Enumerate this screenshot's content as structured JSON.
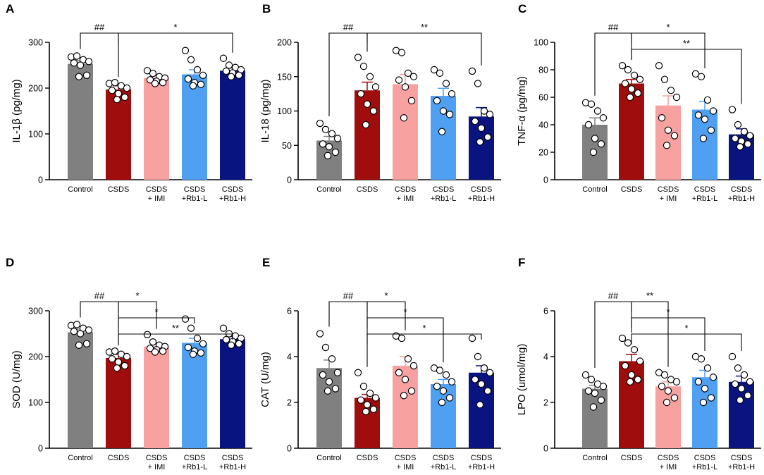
{
  "chart_data": [
    {
      "panel": "A",
      "type": "bar",
      "ylabel": "IL-1β (pg/mg)",
      "ylim": [
        0,
        300
      ],
      "yticks": [
        0,
        100,
        200,
        300
      ],
      "categories": [
        [
          "Control"
        ],
        [
          "CSDS"
        ],
        [
          "CSDS",
          "+ IMI"
        ],
        [
          "CSDS",
          "+Rb1-L"
        ],
        [
          "CSDS",
          "+Rb1-H"
        ]
      ],
      "colors": [
        "#808080",
        "#a00d0d",
        "#f7a1a1",
        "#4f9ff2",
        "#0a1480"
      ],
      "means": [
        253,
        197,
        222,
        230,
        238
      ],
      "sem": [
        7,
        8,
        8,
        10,
        6
      ],
      "points": [
        [
          268,
          270,
          262,
          258,
          255,
          250,
          228,
          225
        ],
        [
          210,
          212,
          205,
          200,
          195,
          188,
          180,
          175
        ],
        [
          238,
          232,
          225,
          222,
          218,
          215,
          212,
          210
        ],
        [
          282,
          262,
          240,
          228,
          220,
          212,
          208,
          205
        ],
        [
          265,
          250,
          245,
          240,
          237,
          233,
          228,
          225
        ]
      ],
      "brackets": [
        {
          "from": 0,
          "to": 1,
          "label": "##",
          "level": 0
        },
        {
          "from": 1,
          "to": 4,
          "label": "*",
          "level": 0
        }
      ]
    },
    {
      "panel": "B",
      "type": "bar",
      "ylabel": "IL-18 (pg/mg)",
      "ylim": [
        0,
        200
      ],
      "yticks": [
        0,
        50,
        100,
        150,
        200
      ],
      "categories": [
        [
          "Control"
        ],
        [
          "CSDS"
        ],
        [
          "CSDS",
          "+ IMI"
        ],
        [
          "CSDS",
          "+Rb1-L"
        ],
        [
          "CSDS",
          "+Rb1-H"
        ]
      ],
      "colors": [
        "#808080",
        "#a00d0d",
        "#f7a1a1",
        "#4f9ff2",
        "#0a1480"
      ],
      "means": [
        57,
        130,
        139,
        122,
        92
      ],
      "sem": [
        6,
        12,
        14,
        11,
        13
      ],
      "points": [
        [
          82,
          73,
          67,
          60,
          52,
          48,
          40,
          35
        ],
        [
          178,
          165,
          150,
          135,
          125,
          110,
          100,
          80
        ],
        [
          188,
          185,
          155,
          150,
          145,
          135,
          115,
          90
        ],
        [
          160,
          155,
          140,
          125,
          115,
          100,
          95,
          70
        ],
        [
          158,
          140,
          100,
          95,
          85,
          75,
          62,
          55
        ]
      ],
      "brackets": [
        {
          "from": 0,
          "to": 1,
          "label": "##",
          "level": 0
        },
        {
          "from": 1,
          "to": 4,
          "label": "**",
          "level": 0
        }
      ]
    },
    {
      "panel": "C",
      "type": "bar",
      "ylabel": "TNF-α (pg/mg)",
      "ylim": [
        0,
        100
      ],
      "yticks": [
        0,
        20,
        40,
        60,
        80,
        100
      ],
      "categories": [
        [
          "Control"
        ],
        [
          "CSDS"
        ],
        [
          "CSDS",
          "+ IMI"
        ],
        [
          "CSDS",
          "+Rb1-L"
        ],
        [
          "CSDS",
          "+Rb1-H"
        ]
      ],
      "colors": [
        "#808080",
        "#a00d0d",
        "#f7a1a1",
        "#4f9ff2",
        "#0a1480"
      ],
      "means": [
        40,
        70,
        54,
        51,
        33
      ],
      "sem": [
        5,
        3,
        7,
        6,
        4
      ],
      "points": [
        [
          56,
          55,
          50,
          45,
          40,
          30,
          26,
          20
        ],
        [
          83,
          80,
          76,
          73,
          70,
          66,
          63,
          60
        ],
        [
          83,
          73,
          65,
          60,
          45,
          36,
          32,
          25
        ],
        [
          77,
          75,
          58,
          50,
          47,
          44,
          36,
          30
        ],
        [
          51,
          40,
          35,
          32,
          30,
          28,
          26,
          24
        ]
      ],
      "brackets": [
        {
          "from": 0,
          "to": 1,
          "label": "##",
          "level": 0
        },
        {
          "from": 1,
          "to": 3,
          "label": "*",
          "level": 0
        },
        {
          "from": 1,
          "to": 4,
          "label": "**",
          "level": 1
        }
      ]
    },
    {
      "panel": "D",
      "type": "bar",
      "ylabel": "SOD (U/mg)",
      "ylim": [
        0,
        300
      ],
      "yticks": [
        0,
        100,
        200,
        300
      ],
      "categories": [
        [
          "Control"
        ],
        [
          "CSDS"
        ],
        [
          "CSDS",
          "+ IMI"
        ],
        [
          "CSDS",
          "+Rb1-L"
        ],
        [
          "CSDS",
          "+Rb1-H"
        ]
      ],
      "colors": [
        "#808080",
        "#a00d0d",
        "#f7a1a1",
        "#4f9ff2",
        "#0a1480"
      ],
      "means": [
        253,
        197,
        222,
        230,
        238
      ],
      "sem": [
        7,
        8,
        8,
        10,
        6
      ],
      "points": [
        [
          268,
          270,
          262,
          258,
          255,
          250,
          228,
          225
        ],
        [
          210,
          212,
          205,
          200,
          195,
          188,
          180,
          175
        ],
        [
          248,
          232,
          225,
          222,
          218,
          215,
          212,
          210
        ],
        [
          282,
          262,
          240,
          228,
          220,
          212,
          208,
          205
        ],
        [
          262,
          250,
          245,
          240,
          237,
          233,
          228,
          225
        ]
      ],
      "brackets": [
        {
          "from": 0,
          "to": 1,
          "label": "##",
          "level": 0
        },
        {
          "from": 1,
          "to": 2,
          "label": "*",
          "level": 0
        },
        {
          "from": 1,
          "to": 3,
          "label": "*",
          "level": 1
        },
        {
          "from": 1,
          "to": 4,
          "label": "**",
          "level": 2
        }
      ]
    },
    {
      "panel": "E",
      "type": "bar",
      "ylabel": "CAT (U/mg)",
      "ylim": [
        0,
        6
      ],
      "yticks": [
        0,
        2,
        4,
        6
      ],
      "categories": [
        [
          "Control"
        ],
        [
          "CSDS"
        ],
        [
          "CSDS",
          "+ IMI"
        ],
        [
          "CSDS",
          "+Rb1-L"
        ],
        [
          "CSDS",
          "+Rb1-H"
        ]
      ],
      "colors": [
        "#808080",
        "#a00d0d",
        "#f7a1a1",
        "#4f9ff2",
        "#0a1480"
      ],
      "means": [
        3.5,
        2.2,
        3.6,
        2.8,
        3.3
      ],
      "sem": [
        0.35,
        0.15,
        0.4,
        0.2,
        0.3
      ],
      "points": [
        [
          5.0,
          4.4,
          3.9,
          3.3,
          3.2,
          2.9,
          2.6,
          2.5
        ],
        [
          3.3,
          2.7,
          2.4,
          2.2,
          2.1,
          1.9,
          1.7,
          1.6
        ],
        [
          4.9,
          4.8,
          3.9,
          3.6,
          3.3,
          3.0,
          2.5,
          2.3
        ],
        [
          3.5,
          3.4,
          3.2,
          2.9,
          2.7,
          2.5,
          2.2,
          2.0
        ],
        [
          4.8,
          4.0,
          3.5,
          3.3,
          3.0,
          2.8,
          2.5,
          1.9
        ]
      ],
      "brackets": [
        {
          "from": 0,
          "to": 1,
          "label": "##",
          "level": 0
        },
        {
          "from": 1,
          "to": 2,
          "label": "*",
          "level": 0
        },
        {
          "from": 1,
          "to": 3,
          "label": "*",
          "level": 1
        },
        {
          "from": 1,
          "to": 4,
          "label": "*",
          "level": 2
        }
      ]
    },
    {
      "panel": "F",
      "type": "bar",
      "ylabel": "LPO (umol/mg)",
      "ylim": [
        0,
        6
      ],
      "yticks": [
        0,
        2,
        4,
        6
      ],
      "categories": [
        [
          "Control"
        ],
        [
          "CSDS"
        ],
        [
          "CSDS",
          "+ IMI"
        ],
        [
          "CSDS",
          "+Rb1-L"
        ],
        [
          "CSDS",
          "+Rb1-H"
        ]
      ],
      "colors": [
        "#808080",
        "#a00d0d",
        "#f7a1a1",
        "#4f9ff2",
        "#0a1480"
      ],
      "means": [
        2.6,
        3.8,
        2.7,
        3.1,
        2.9
      ],
      "sem": [
        0.15,
        0.3,
        0.2,
        0.3,
        0.25
      ],
      "points": [
        [
          3.2,
          3.0,
          2.8,
          2.7,
          2.5,
          2.4,
          2.1,
          1.8
        ],
        [
          4.8,
          4.6,
          4.3,
          3.8,
          3.6,
          3.2,
          3.0,
          2.9
        ],
        [
          3.3,
          3.2,
          3.0,
          2.9,
          2.7,
          2.5,
          2.2,
          2.0
        ],
        [
          4.0,
          3.9,
          3.5,
          3.1,
          2.9,
          2.6,
          2.2,
          2.0
        ],
        [
          4.0,
          3.5,
          3.2,
          2.9,
          2.8,
          2.6,
          2.3,
          2.1
        ]
      ],
      "brackets": [
        {
          "from": 0,
          "to": 1,
          "label": "##",
          "level": 0
        },
        {
          "from": 1,
          "to": 2,
          "label": "**",
          "level": 0
        },
        {
          "from": 1,
          "to": 3,
          "label": "*",
          "level": 1
        },
        {
          "from": 1,
          "to": 4,
          "label": "*",
          "level": 2
        }
      ]
    }
  ]
}
